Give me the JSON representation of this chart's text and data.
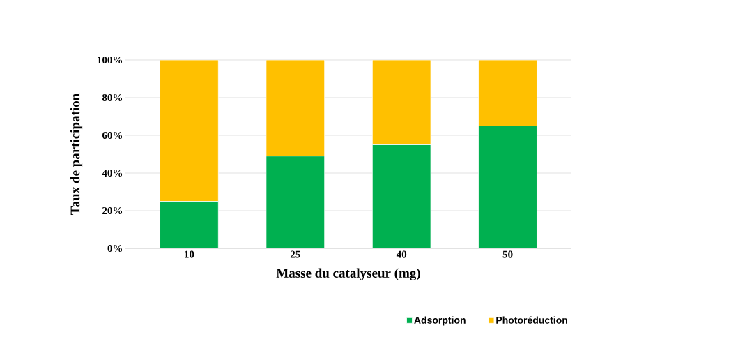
{
  "chart_data": {
    "type": "bar",
    "stacked": true,
    "xlabel": "Masse du catalyseur (mg)",
    "ylabel": "Taux de participation",
    "categories": [
      "10",
      "25",
      "40",
      "50"
    ],
    "series": [
      {
        "name": "Adsorption",
        "color": "#00b050",
        "values": [
          25,
          49,
          55,
          65
        ]
      },
      {
        "name": "Photoréduction",
        "color": "#ffc000",
        "values": [
          75,
          51,
          45,
          35
        ]
      }
    ],
    "ylim": [
      0,
      100
    ],
    "yticks": [
      {
        "value": 0,
        "label": "0%"
      },
      {
        "value": 20,
        "label": "20%"
      },
      {
        "value": 40,
        "label": "40%"
      },
      {
        "value": 60,
        "label": "60%"
      },
      {
        "value": 80,
        "label": "80%"
      },
      {
        "value": 100,
        "label": "100%"
      }
    ],
    "grid": "y",
    "legend": "bottom right"
  }
}
